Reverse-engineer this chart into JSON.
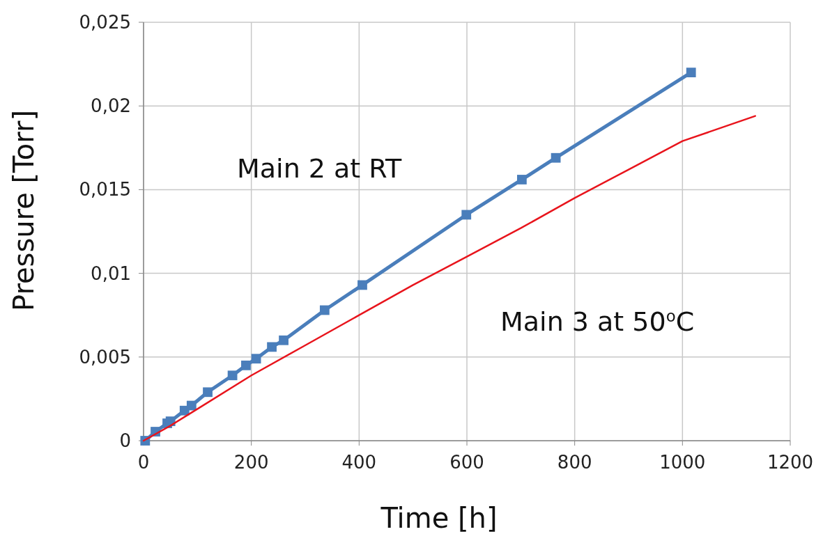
{
  "chart_data": {
    "type": "line",
    "xlabel": "Time [h]",
    "ylabel": "Pressure [Torr]",
    "xlim": [
      0,
      1200
    ],
    "xticks": [
      0,
      200,
      400,
      600,
      800,
      1000,
      1200
    ],
    "ylim": [
      0,
      0.025
    ],
    "yticks": [
      {
        "value": 0,
        "label": "0"
      },
      {
        "value": 0.005,
        "label": "0,005"
      },
      {
        "value": 0.01,
        "label": "0,01"
      },
      {
        "value": 0.015,
        "label": "0,015"
      },
      {
        "value": 0.02,
        "label": "0,02"
      },
      {
        "value": 0.025,
        "label": "0,025"
      }
    ],
    "grid": true,
    "annotations": [
      "Main 2  at RT",
      "Main 3  at 50$^{o}$C"
    ],
    "series": [
      {
        "color": "#4a7ebb",
        "marker": "square",
        "x": [
          3,
          22,
          44,
          50,
          76,
          89,
          119,
          165,
          190,
          209,
          238,
          260,
          336,
          406,
          599,
          702,
          765,
          1016
        ],
        "values": [
          0,
          0.00054,
          0.00104,
          0.00116,
          0.0018,
          0.0021,
          0.0029,
          0.0039,
          0.0045,
          0.0049,
          0.0056,
          0.006,
          0.0078,
          0.0093,
          0.0135,
          0.0156,
          0.0169,
          0.022
        ]
      },
      {
        "color": "#e8141c",
        "marker": "none",
        "x": [
          0,
          50,
          100,
          200,
          300,
          400,
          500,
          600,
          700,
          800,
          900,
          1000,
          1135
        ],
        "values": [
          0,
          0.0009,
          0.0019,
          0.0039,
          0.0057,
          0.0075,
          0.0093,
          0.011,
          0.0127,
          0.0145,
          0.0162,
          0.0179,
          0.0194
        ]
      }
    ]
  }
}
